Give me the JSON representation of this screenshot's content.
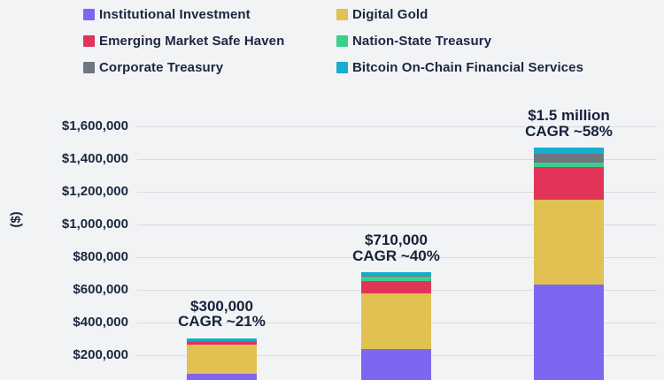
{
  "colors": {
    "background": "#F1F3F5",
    "text": "#1B2740",
    "gridline": "#D9DBDE"
  },
  "legend": {
    "items": [
      {
        "label": "Institutional Investment",
        "color": "#7F66F0"
      },
      {
        "label": "Digital Gold",
        "color": "#E0C152"
      },
      {
        "label": "Emerging Market Safe Haven",
        "color": "#E23459"
      },
      {
        "label": "Nation-State Treasury",
        "color": "#3BCE8D"
      },
      {
        "label": "Corporate Treasury",
        "color": "#6E7680"
      },
      {
        "label": "Bitcoin On-Chain Financial Services",
        "color": "#16ADCF"
      }
    ]
  },
  "chart_data": {
    "type": "bar",
    "stacked": true,
    "stack_order": "bottom-to-top",
    "categories": [
      "",
      "",
      ""
    ],
    "series": [
      {
        "name": "Institutional Investment",
        "color": "#7F66F0",
        "values": [
          86000,
          238000,
          630000
        ]
      },
      {
        "name": "Digital Gold",
        "color": "#E0C152",
        "values": [
          178000,
          342000,
          520000
        ]
      },
      {
        "name": "Emerging Market Safe Haven",
        "color": "#E23459",
        "values": [
          22000,
          76000,
          200000
        ]
      },
      {
        "name": "Nation-State Treasury",
        "color": "#3BCE8D",
        "values": [
          1000,
          24000,
          30000
        ]
      },
      {
        "name": "Corporate Treasury",
        "color": "#6E7680",
        "values": [
          1000,
          5000,
          55000
        ]
      },
      {
        "name": "Bitcoin On-Chain Financial Services",
        "color": "#16ADCF",
        "values": [
          16000,
          23000,
          35000
        ]
      }
    ],
    "bar_totals": [
      304000,
      708000,
      1470000
    ],
    "annotations": [
      {
        "lines": [
          "$300,000",
          "CAGR ~21%"
        ]
      },
      {
        "lines": [
          "$710,000",
          "CAGR ~40%"
        ]
      },
      {
        "lines": [
          "$1.5 million",
          "CAGR ~58%"
        ]
      }
    ],
    "title": "",
    "xlabel": "",
    "ylabel": "($)",
    "ylim": [
      0,
      1724000
    ],
    "yticks": [
      {
        "value": 200000,
        "label": "$200,000"
      },
      {
        "value": 400000,
        "label": "$400,000"
      },
      {
        "value": 600000,
        "label": "$600,000"
      },
      {
        "value": 800000,
        "label": "$800,000"
      },
      {
        "value": 1000000,
        "label": "$1,000,000"
      },
      {
        "value": 1200000,
        "label": "$1,200,000"
      },
      {
        "value": 1400000,
        "label": "$1,400,000"
      },
      {
        "value": 1600000,
        "label": "$1,600,000"
      }
    ],
    "grid": true,
    "legend_position": "top"
  }
}
